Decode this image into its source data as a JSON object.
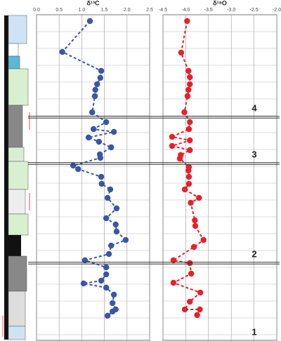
{
  "chart_data": [
    {
      "type": "scatter",
      "title": "δ¹³C",
      "xlim": [
        0,
        2.5
      ],
      "xticks": [
        {
          "value": 0,
          "label": "0.0"
        },
        {
          "value": 0.5,
          "label": "0.5"
        },
        {
          "value": 1,
          "label": "1.0"
        },
        {
          "value": 1.5,
          "label": "1.5"
        },
        {
          "value": 2,
          "label": "2.0"
        },
        {
          "value": 2.5,
          "label": "2.5"
        }
      ],
      "ylim": [
        0,
        46.5
      ],
      "grid": true,
      "series": [
        {
          "color": "#3a56a8",
          "x": [
            1.18,
            0.57,
            1.43,
            1.41,
            1.34,
            1.3,
            1.29,
            1.23,
            1.54,
            1.26,
            1.71,
            1.15,
            1.38,
            1.65,
            1.4,
            1.41,
            0.81,
            0.92,
            1.43,
            1.44,
            1.63,
            1.57,
            1.77,
            1.54,
            1.75,
            1.77,
            1.97,
            1.65,
            1.6,
            1.07,
            1.54,
            1.54,
            1.43,
            1.04,
            1.54,
            1.71,
            1.68,
            1.75,
            1.68,
            1.57
          ],
          "values": [
            45.6,
            41.2,
            38.5,
            37.5,
            36.6,
            35.8,
            34.9,
            32.6,
            31.2,
            30.2,
            29.8,
            29.0,
            28.4,
            27.6,
            26.6,
            26.1,
            25.0,
            24.5,
            23.4,
            22.4,
            21.6,
            20.4,
            18.9,
            17.5,
            16.6,
            15.6,
            14.4,
            13.6,
            12.4,
            11.5,
            10.5,
            9.5,
            8.6,
            8.2,
            7.6,
            6.6,
            5.4,
            4.5,
            4.2,
            3.6
          ]
        }
      ]
    },
    {
      "type": "scatter",
      "title": "δ¹⁸O",
      "xlim": [
        -4.5,
        -2
      ],
      "xticks": [
        -4.5,
        {
          "value": -4,
          "label": "-4.0"
        },
        -3.5,
        {
          "value": -3,
          "label": "-3.0"
        },
        -2.5,
        {
          "value": -2,
          "label": "-2.0"
        }
      ],
      "ylim": [
        0,
        46.5
      ],
      "grid": true,
      "series": [
        {
          "color": "#e8202a",
          "x": [
            -3.97,
            -4.1,
            -3.94,
            -3.91,
            -3.91,
            -3.94,
            -3.96,
            -4.03,
            -3.91,
            -3.93,
            -4.3,
            -3.91,
            -4.3,
            -3.91,
            -4.11,
            -4.13,
            -3.93,
            -3.94,
            -3.93,
            -3.93,
            -4.02,
            -3.71,
            -3.89,
            -3.8,
            -3.79,
            -3.61,
            -3.82,
            -4.27,
            -3.91,
            -3.88,
            -4.27,
            -3.68,
            -3.91,
            -4.02,
            -3.69,
            -3.75
          ],
          "values": [
            45.6,
            41.1,
            38.5,
            37.6,
            36.6,
            35.8,
            34.9,
            32.6,
            31.2,
            30.2,
            29.1,
            28.6,
            27.8,
            27.2,
            26.5,
            26.0,
            24.8,
            24.3,
            23.4,
            22.4,
            21.6,
            20.4,
            19.7,
            17.2,
            16.4,
            14.4,
            13.4,
            11.5,
            11.1,
            9.6,
            8.3,
            6.9,
            5.6,
            4.5,
            4.5,
            3.7
          ]
        }
      ]
    }
  ],
  "sequence_boundaries": [
    31.9,
    25.3,
    11.1
  ],
  "sequences": [
    "4",
    "3",
    "2",
    "1"
  ]
}
